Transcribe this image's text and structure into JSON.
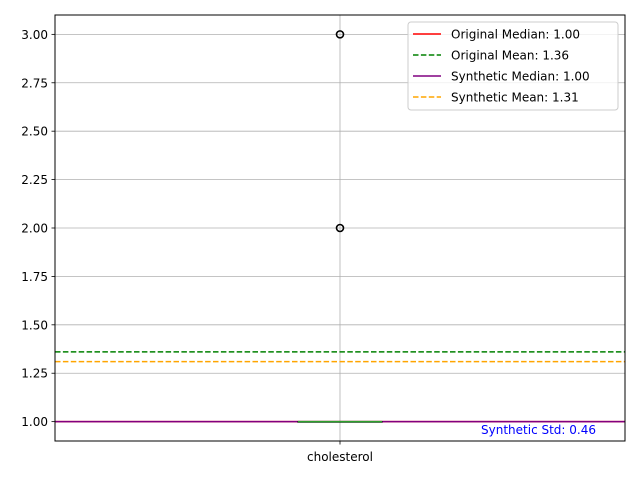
{
  "chart_data": {
    "type": "box",
    "categories": [
      "cholesterol"
    ],
    "ylim": [
      0.9,
      3.1
    ],
    "yticks": [
      1.0,
      1.25,
      1.5,
      1.75,
      2.0,
      2.25,
      2.5,
      2.75,
      3.0
    ],
    "ytick_labels": [
      "1.00",
      "1.25",
      "1.50",
      "1.75",
      "2.00",
      "2.25",
      "2.50",
      "2.75",
      "3.00"
    ],
    "grid": true,
    "box": {
      "q1": 1.0,
      "median": 1.0,
      "q3": 1.0,
      "whisker_low": 1.0,
      "whisker_high": 1.0,
      "outliers": [
        2.0,
        3.0
      ]
    },
    "reference_lines": [
      {
        "label": "Original Median: 1.00",
        "value": 1.0,
        "color": "#ff0000",
        "style": "solid"
      },
      {
        "label": "Original Mean: 1.36",
        "value": 1.36,
        "color": "#008000",
        "style": "dashed"
      },
      {
        "label": "Synthetic Median: 1.00",
        "value": 1.0,
        "color": "#800080",
        "style": "solid"
      },
      {
        "label": "Synthetic Mean: 1.31",
        "value": 1.31,
        "color": "#ffa500",
        "style": "dashed"
      }
    ],
    "legend_position": "top-right",
    "annotation": {
      "text": "Synthetic Std: 0.46",
      "color": "#0000ff",
      "position": "bottom-right"
    }
  }
}
